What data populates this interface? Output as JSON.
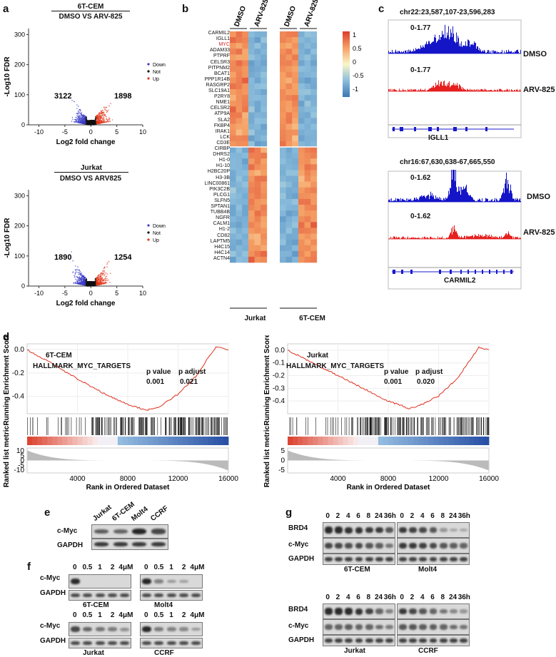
{
  "panels": {
    "a": "a",
    "b": "b",
    "c": "c",
    "d": "d",
    "e": "e",
    "f": "f",
    "g": "g"
  },
  "colors": {
    "down": "#3a3ac8",
    "up": "#e2391c",
    "not": "#111111",
    "dmso_track": "#1515c8",
    "arv_track": "#e61f1f"
  },
  "panel_a": {
    "top": {
      "cell": "6T-CEM",
      "title": "DMSO VS ARV-825",
      "down_count": "3122",
      "up_count": "1898"
    },
    "bottom": {
      "cell": "Jurkat",
      "title": "DMSO VS ARV825",
      "down_count": "1890",
      "up_count": "1254"
    },
    "ylabel": "-Log10 FDR",
    "xlabel": "Log2 fold change",
    "legend": [
      "Down",
      "Not",
      "Up"
    ],
    "top_yticks": [
      "0",
      "100",
      "200",
      "300"
    ],
    "top_xticks": [
      "-10",
      "-5",
      "0",
      "5",
      "10"
    ],
    "bottom_yticks": [
      "0",
      "100",
      "200",
      "300"
    ],
    "bottom_xticks": [
      "-10",
      "-5",
      "0",
      "5",
      "10"
    ]
  },
  "panel_b": {
    "col_labels": [
      "DMSO",
      "ARV-825",
      "DMSO",
      "ARV-825"
    ],
    "groups": [
      "Jurkat",
      "6T-CEM"
    ],
    "genes": [
      "CARMIL2",
      "IGLL1",
      "MYC",
      "ADAM33",
      "PTPRF",
      "CELSR3",
      "PITPNM2",
      "BCAT1",
      "PPP1R14B",
      "RASGRP2",
      "SLC19A1",
      "P2RY8",
      "NME1",
      "CELSR2",
      "ATP9A",
      "SLA2",
      "FKBP4",
      "IRAK1",
      "LCK",
      "CD3E",
      "CIRBP",
      "DHRS2",
      "H1-0",
      "H1-10",
      "H2BC20P",
      "H3-3B",
      "LINC00861",
      "PIK3C2B",
      "PLCG1",
      "SLFN5",
      "SPTAN1",
      "TUBB4B",
      "NGFR",
      "CALM1",
      "H1-2",
      "CD82",
      "LAPTM5",
      "H4C15",
      "H4C14",
      "ACTN4"
    ],
    "highlight_gene": "MYC",
    "colorbar_ticks": [
      "1",
      "0.5",
      "0",
      "-0.5",
      "-1"
    ]
  },
  "panel_c": {
    "top": {
      "region": "chr22:23,587,107-23,596,283",
      "range_dmso": "0-1.77",
      "range_arv": "0-1.77",
      "label_dmso": "DMSO",
      "label_arv": "ARV-825",
      "gene": "IGLL1"
    },
    "bottom": {
      "region": "chr16:67,630,638-67,665,550",
      "range_dmso": "0-1.62",
      "range_arv": "0-1.62",
      "label_dmso": "DMSO",
      "label_arv": "ARV-825",
      "gene": "CARMIL2"
    }
  },
  "panel_d": {
    "left": {
      "cell": "6T-CEM",
      "set": "HALLMARK_MYC_TARGETS",
      "pvalue_label": "p value",
      "pvalue": "0.001",
      "padj_label": "p adjust",
      "padj": "0.021",
      "es_ticks": [
        "0.0",
        "-0.2",
        "-0.4"
      ],
      "metric_ticks": [
        "10",
        "5",
        "0",
        "-5",
        "-10"
      ]
    },
    "right": {
      "cell": "Jurkat",
      "set": "HALLMARK_MYC_TARGETS",
      "pvalue_label": "p value",
      "pvalue": "0.001",
      "padj_label": "p adjust",
      "padj": "0.020",
      "es_ticks": [
        "0.0",
        "-0.1",
        "-0.2",
        "-0.3",
        "-0.4"
      ],
      "metric_ticks": [
        "5",
        "0",
        "-5"
      ]
    },
    "ylabel_es": "Running Enrichment Score",
    "ylabel_metric": "Ranked list metric",
    "xlabel": "Rank in Ordered Dataset",
    "xticks": [
      "4000",
      "8000",
      "12000",
      "16000"
    ]
  },
  "panel_e": {
    "lanes": [
      "Jurkat",
      "6T-CEM",
      "Molt4",
      "CCRF"
    ],
    "rows": [
      "c-Myc",
      "GAPDH"
    ]
  },
  "panel_f": {
    "lanes": [
      "0",
      "0.5",
      "1",
      "2",
      "4μM"
    ],
    "rows": [
      "c-Myc",
      "GAPDH"
    ],
    "cells": [
      "6T-CEM",
      "Molt4",
      "Jurkat",
      "CCRF"
    ]
  },
  "panel_g": {
    "lanes": [
      "0",
      "2",
      "4",
      "6",
      "8",
      "24",
      "36h"
    ],
    "rows": [
      "BRD4",
      "c-Myc",
      "GAPDH"
    ],
    "cells": [
      "6T-CEM",
      "Molt4",
      "Jurkat",
      "CCRF"
    ]
  },
  "chart_data": [
    {
      "type": "scatter",
      "title": "6T-CEM DMSO VS ARV-825",
      "xlabel": "Log2 fold change",
      "ylabel": "-Log10 FDR",
      "xlim": [
        -12,
        10
      ],
      "ylim": [
        0,
        320
      ],
      "series": [
        {
          "name": "Down",
          "count": 3122
        },
        {
          "name": "Not"
        },
        {
          "name": "Up",
          "count": 1898
        }
      ]
    },
    {
      "type": "scatter",
      "title": "Jurkat DMSO VS ARV825",
      "xlabel": "Log2 fold change",
      "ylabel": "-Log10 FDR",
      "xlim": [
        -12,
        10
      ],
      "ylim": [
        0,
        320
      ],
      "series": [
        {
          "name": "Down",
          "count": 1890
        },
        {
          "name": "Not"
        },
        {
          "name": "Up",
          "count": 1254
        }
      ]
    },
    {
      "type": "line",
      "title": "6T-CEM HALLMARK_MYC_TARGETS",
      "xlabel": "Rank in Ordered Dataset",
      "ylabel": "Running Enrichment Score",
      "xlim": [
        0,
        16000
      ],
      "ylim": [
        -0.55,
        0.05
      ],
      "x": [
        0,
        2000,
        4000,
        6000,
        8000,
        9500,
        10500,
        12000,
        13500,
        14500,
        15000,
        16000
      ],
      "y": [
        0.0,
        -0.12,
        -0.25,
        -0.37,
        -0.47,
        -0.52,
        -0.49,
        -0.38,
        -0.22,
        -0.05,
        0.02,
        0.0
      ]
    },
    {
      "type": "line",
      "title": "Jurkat HALLMARK_MYC_TARGETS",
      "xlabel": "Rank in Ordered Dataset",
      "ylabel": "Running Enrichment Score",
      "xlim": [
        0,
        16000
      ],
      "ylim": [
        -0.5,
        0.05
      ],
      "x": [
        0,
        2000,
        4000,
        6000,
        8000,
        9700,
        10600,
        12000,
        13500,
        14700,
        15200,
        16000
      ],
      "y": [
        0.0,
        -0.1,
        -0.2,
        -0.3,
        -0.4,
        -0.46,
        -0.43,
        -0.36,
        -0.22,
        -0.05,
        0.02,
        0.0
      ]
    }
  ]
}
